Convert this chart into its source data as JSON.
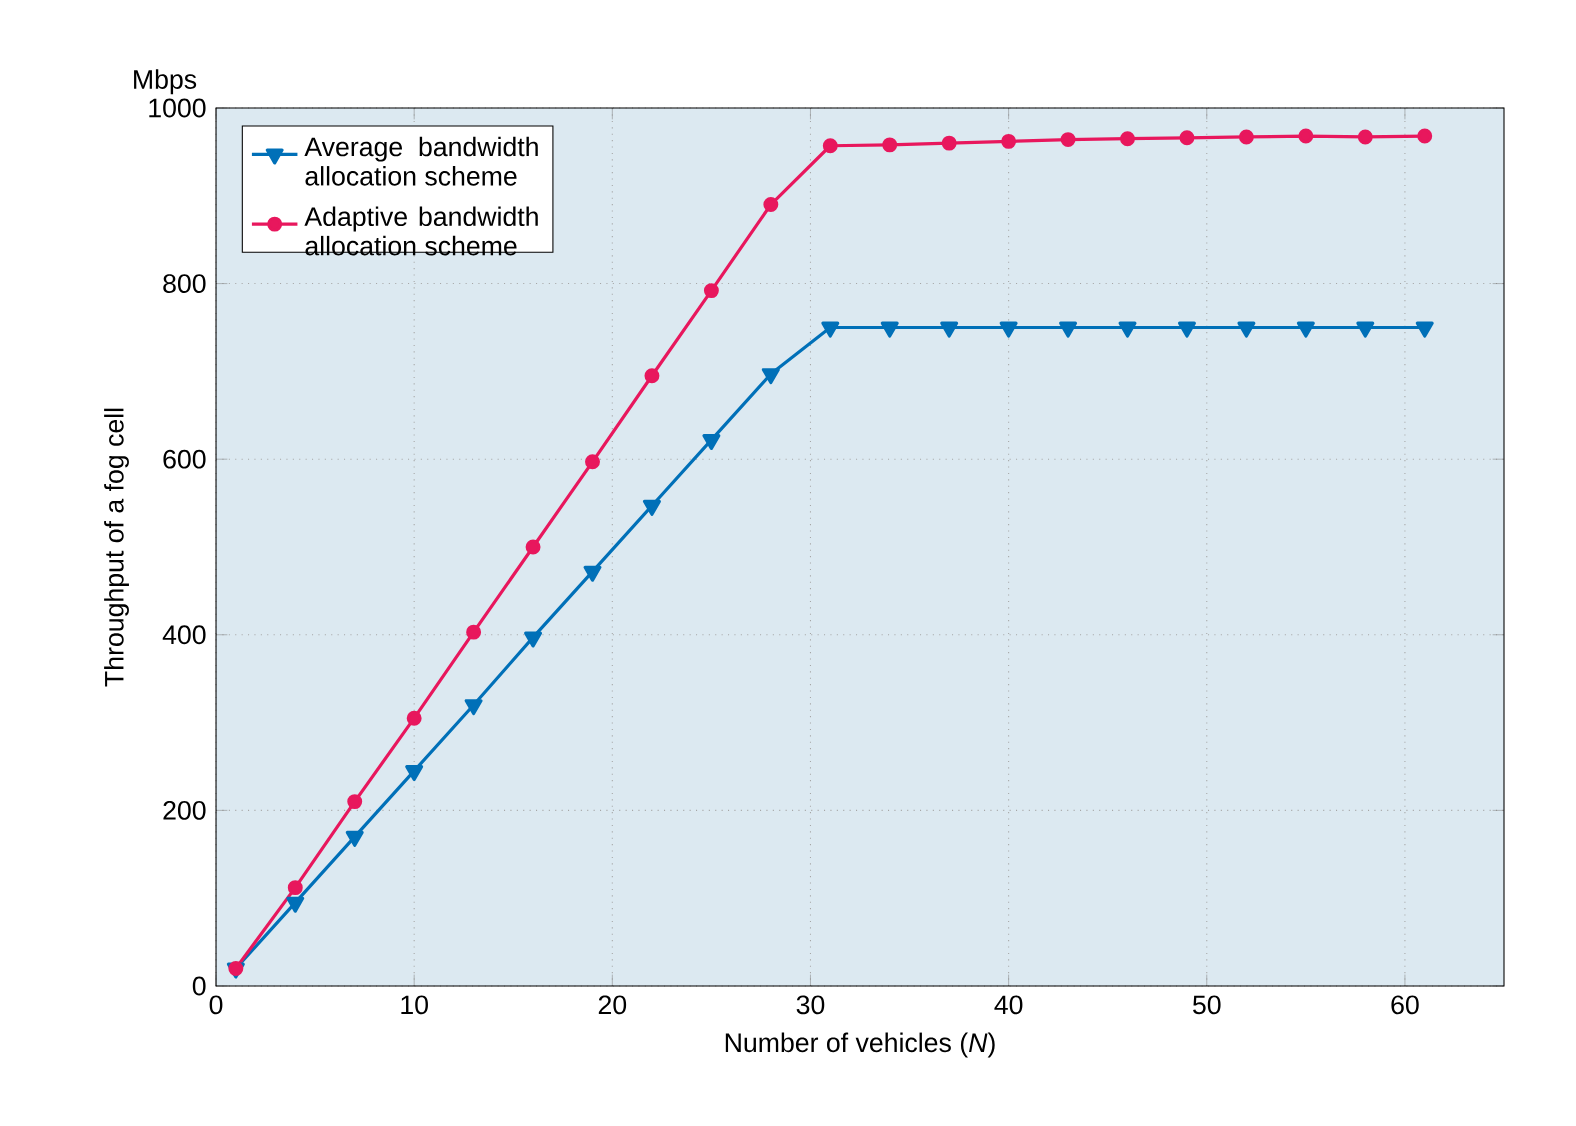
{
  "chart_data": {
    "type": "line",
    "xlabel": "Number of vehicles (*N*)",
    "ylabel": "Throughput of a fog cell",
    "annotations": [
      "Mbps"
    ],
    "x": [
      1,
      4,
      7,
      10,
      13,
      16,
      19,
      22,
      25,
      28,
      31,
      34,
      37,
      40,
      43,
      46,
      49,
      52,
      55,
      58,
      61
    ],
    "series": [
      {
        "name": "Average bandwidth allocation scheme",
        "color": "#0070b8",
        "marker": "triangle",
        "values": [
          20,
          95,
          170,
          245,
          320,
          397,
          472,
          547,
          622,
          697,
          750,
          750,
          750,
          750,
          750,
          750,
          750,
          750,
          750,
          750,
          750
        ]
      },
      {
        "name": "Adaptive bandwidth allocation scheme",
        "color": "#e8175d",
        "marker": "circle",
        "values": [
          20,
          112,
          210,
          305,
          403,
          500,
          597,
          695,
          792,
          890,
          957,
          958,
          960,
          962,
          964,
          965,
          966,
          967,
          968,
          967,
          968
        ]
      }
    ],
    "xlim": [
      0,
      65
    ],
    "ylim": [
      0,
      1000
    ],
    "xticks": [
      0,
      10,
      20,
      30,
      40,
      50,
      60
    ],
    "yticks": [
      0,
      200,
      400,
      600,
      800,
      1000
    ],
    "grid": true,
    "legend": "top left",
    "line_style": "solid"
  }
}
